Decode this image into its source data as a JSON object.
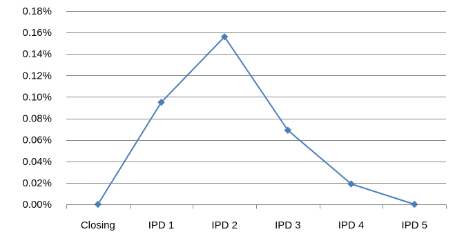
{
  "chart_data": {
    "type": "line",
    "title": "",
    "xlabel": "",
    "ylabel": "",
    "categories": [
      "Closing",
      "IPD 1",
      "IPD 2",
      "IPD 3",
      "IPD 4",
      "IPD 5"
    ],
    "series": [
      {
        "values": [
          0.0,
          0.095,
          0.156,
          0.069,
          0.019,
          0.0
        ],
        "color": "#4A7EBB",
        "marker": "diamond"
      }
    ],
    "ylim": [
      0,
      0.18
    ],
    "y_ticks": [
      0.0,
      0.02,
      0.04,
      0.06,
      0.08,
      0.1,
      0.12,
      0.14,
      0.16,
      0.18
    ],
    "y_tick_labels": [
      "0.00%",
      "0.02%",
      "0.04%",
      "0.06%",
      "0.08%",
      "0.10%",
      "0.12%",
      "0.14%",
      "0.16%",
      "0.18%"
    ],
    "grid": true,
    "legend": "none"
  }
}
